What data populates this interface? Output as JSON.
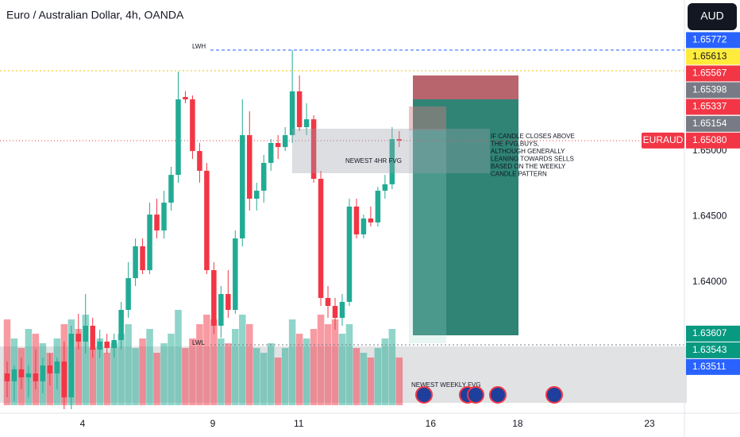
{
  "chart_data": {
    "type": "candlestick",
    "title": "Euro / Australian Dollar, 4h, OANDA",
    "currency": "AUD",
    "up_color": "#22ab94",
    "down_color": "#f23645",
    "x": [
      1,
      2,
      3,
      4,
      5,
      6,
      7,
      8,
      9,
      10,
      11,
      12,
      13,
      14,
      15,
      16,
      17,
      18,
      19,
      20,
      21,
      22,
      23,
      24,
      25,
      26,
      27,
      28,
      29,
      30,
      31,
      32,
      33,
      34,
      35,
      36,
      37,
      38,
      39,
      40,
      41,
      42,
      43,
      44,
      45,
      46,
      47,
      48,
      49,
      50,
      51,
      52,
      53,
      54,
      55,
      56
    ],
    "open": [
      1.63303,
      1.63243,
      1.63334,
      1.63273,
      1.63303,
      1.63243,
      1.63364,
      1.63303,
      1.63394,
      1.63121,
      1.63606,
      1.63546,
      1.63667,
      1.63485,
      1.63546,
      1.63497,
      1.63558,
      1.63788,
      1.6403,
      1.64273,
      1.64091,
      1.64515,
      1.64394,
      1.64606,
      1.64818,
      1.65412,
      1.65394,
      1.65,
      1.64849,
      1.64091,
      1.63667,
      1.63909,
      1.63788,
      1.64333,
      1.65121,
      1.64636,
      1.64697,
      1.64909,
      1.65061,
      1.6503,
      1.65121,
      1.65455,
      1.65182,
      1.65242,
      1.64788,
      1.63879,
      1.63818,
      1.63727,
      1.63849,
      1.64576,
      1.64364,
      1.64485,
      1.64455,
      1.64697,
      1.64746,
      1.65091
    ],
    "high": [
      1.63394,
      1.63364,
      1.63424,
      1.63364,
      1.63485,
      1.63424,
      1.63455,
      1.63424,
      1.63546,
      1.63667,
      1.63758,
      1.63909,
      1.63727,
      1.63637,
      1.63606,
      1.63606,
      1.63849,
      1.64152,
      1.64333,
      1.64333,
      1.64606,
      1.64636,
      1.64697,
      1.64879,
      1.65606,
      1.65455,
      1.65424,
      1.65061,
      1.64909,
      1.64152,
      1.6397,
      1.64091,
      1.64394,
      1.65394,
      1.65303,
      1.64758,
      1.6497,
      1.65091,
      1.65121,
      1.65182,
      1.6577,
      1.65576,
      1.65364,
      1.65273,
      1.64849,
      1.6397,
      1.63879,
      1.63909,
      1.64636,
      1.64636,
      1.64515,
      1.64576,
      1.64727,
      1.64818,
      1.65182,
      1.65152
    ],
    "low": [
      1.63121,
      1.63091,
      1.63182,
      1.63121,
      1.63182,
      1.63152,
      1.63212,
      1.63182,
      1.6303,
      1.6303,
      1.63485,
      1.63455,
      1.63424,
      1.63424,
      1.63455,
      1.63424,
      1.63485,
      1.63727,
      1.6397,
      1.64061,
      1.64061,
      1.64333,
      1.64333,
      1.64546,
      1.64758,
      1.65364,
      1.64939,
      1.64758,
      1.64061,
      1.63606,
      1.63576,
      1.63727,
      1.63758,
      1.64273,
      1.64546,
      1.64546,
      1.64606,
      1.64849,
      1.64939,
      1.65,
      1.65061,
      1.65152,
      1.65121,
      1.64758,
      1.63818,
      1.63727,
      1.63637,
      1.63667,
      1.63818,
      1.64333,
      1.64333,
      1.64424,
      1.64424,
      1.64636,
      1.64709,
      1.6503
    ],
    "close": [
      1.63243,
      1.63334,
      1.63273,
      1.63303,
      1.63243,
      1.63364,
      1.63303,
      1.63394,
      1.63121,
      1.63606,
      1.63546,
      1.63667,
      1.63485,
      1.63546,
      1.63497,
      1.63558,
      1.63788,
      1.6403,
      1.64273,
      1.64091,
      1.64515,
      1.64394,
      1.64606,
      1.64818,
      1.65394,
      1.65394,
      1.65,
      1.64849,
      1.64091,
      1.63667,
      1.63909,
      1.63788,
      1.64333,
      1.65121,
      1.64636,
      1.64697,
      1.64909,
      1.65061,
      1.6503,
      1.65121,
      1.65455,
      1.65182,
      1.65242,
      1.64788,
      1.63879,
      1.63818,
      1.63727,
      1.63849,
      1.64576,
      1.64364,
      1.64485,
      1.64455,
      1.64697,
      1.64746,
      1.65091,
      1.6508
    ],
    "volume": [
      90,
      70,
      60,
      80,
      75,
      65,
      55,
      70,
      85,
      90,
      80,
      95,
      60,
      70,
      55,
      65,
      75,
      85,
      60,
      70,
      80,
      55,
      65,
      75,
      100,
      60,
      70,
      85,
      95,
      90,
      70,
      65,
      80,
      95,
      85,
      60,
      55,
      65,
      50,
      60,
      90,
      75,
      70,
      80,
      95,
      85,
      90,
      75,
      85,
      60,
      55,
      50,
      60,
      70,
      80,
      50
    ],
    "vlim": [
      0,
      100
    ],
    "xlim": [
      0,
      96
    ],
    "xticks": [
      {
        "value": 11.58,
        "label": "4"
      },
      {
        "value": 29.84,
        "label": "9"
      },
      {
        "value": 41.9,
        "label": "11"
      },
      {
        "value": 60.4,
        "label": "16"
      },
      {
        "value": 72.6,
        "label": "18"
      },
      {
        "value": 91.1,
        "label": "23"
      }
    ],
    "ylim": [
      1.63,
      1.66152
    ],
    "yticks": [
      {
        "value": 1.65,
        "label": "1.65000"
      },
      {
        "value": 1.645,
        "label": "1.64500"
      },
      {
        "value": 1.64,
        "label": "1.64000"
      }
    ],
    "grid": false,
    "price_labels": [
      {
        "value": 1.65772,
        "label": "1.65772",
        "color": "#2962ff"
      },
      {
        "value": 1.65613,
        "label": "1.65613",
        "color": "#ffeb3b"
      },
      {
        "value": 1.65567,
        "label": "1.65567",
        "color": "#f23645"
      },
      {
        "value": 1.65398,
        "label": "1.65398",
        "color": "#787b86"
      },
      {
        "value": 1.65337,
        "label": "1.65337",
        "color": "#f23645"
      },
      {
        "value": 1.65154,
        "label": "1.65154",
        "color": "#787b86"
      },
      {
        "value": 1.6508,
        "label": "1.65080",
        "color": "#f23645",
        "tag": "EURAUD"
      },
      {
        "value": 1.63607,
        "label": "1.63607",
        "color": "#089981"
      },
      {
        "value": 1.63543,
        "label": "1.63543",
        "color": "#089981"
      },
      {
        "value": 1.63511,
        "label": "1.63511",
        "color": "#2962ff"
      }
    ],
    "annotations": {
      "lwh": "LWH",
      "lwl": "LWL",
      "fvg_4h": "NEWEST 4HR FVG",
      "fvg_weekly": "NEWEST WEEKLY FVG",
      "note": [
        "IF CANDLE CLOSES ABOVE",
        "THE FVG,BUYS,",
        "ALTHOUGH GENERALLY",
        "LEANING TOWARDS SELLS",
        "BASED ON THE WEEKLY",
        "CANDLE PATTERN"
      ]
    }
  }
}
